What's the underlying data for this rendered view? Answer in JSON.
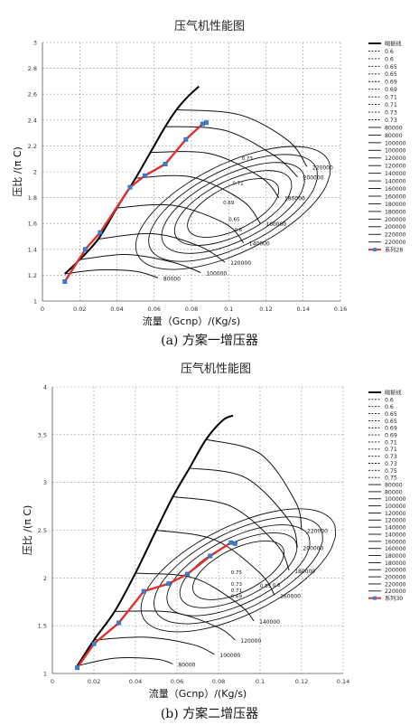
{
  "chart_data": [
    {
      "type": "line",
      "title": "压气机性能图",
      "xlabel": "流量（Gcnp）/(Kg/s)",
      "ylabel": "压比 /(π C)",
      "caption": "(a) 方案一增压器",
      "xlim": [
        0,
        0.16
      ],
      "ylim": [
        1,
        3
      ],
      "x_ticks": [
        "0",
        "0.02",
        "0.04",
        "0.06",
        "0.08",
        "0.1",
        "0.12",
        "0.14",
        "0.16"
      ],
      "y_ticks": [
        "1",
        "1.2",
        "1.4",
        "1.6",
        "1.8",
        "2",
        "2.2",
        "2.4",
        "2.6",
        "2.8",
        "3"
      ],
      "grid": true,
      "legend_position": "right",
      "legend": [
        "喘振线",
        "0.6",
        "0.6",
        "0.65",
        "0.65",
        "0.69",
        "0.69",
        "0.71",
        "0.71",
        "0.73",
        "0.73",
        "80000",
        "80000",
        "100000",
        "100000",
        "120000",
        "120000",
        "140000",
        "140000",
        "160000",
        "160000",
        "180000",
        "180000",
        "200000",
        "200000",
        "220000",
        "220000",
        "系列28"
      ],
      "surge_line": [
        [
          0.012,
          1.21
        ],
        [
          0.02,
          1.32
        ],
        [
          0.03,
          1.48
        ],
        [
          0.04,
          1.72
        ],
        [
          0.05,
          1.95
        ],
        [
          0.058,
          2.15
        ],
        [
          0.066,
          2.35
        ],
        [
          0.072,
          2.48
        ],
        [
          0.078,
          2.58
        ],
        [
          0.084,
          2.66
        ]
      ],
      "speed_lines": [
        {
          "label": "80000",
          "points": [
            [
              0.012,
              1.21
            ],
            [
              0.03,
              1.24
            ],
            [
              0.05,
              1.23
            ],
            [
              0.062,
              1.18
            ]
          ]
        },
        {
          "label": "100000",
          "points": [
            [
              0.02,
              1.32
            ],
            [
              0.045,
              1.36
            ],
            [
              0.07,
              1.3
            ],
            [
              0.085,
              1.22
            ]
          ]
        },
        {
          "label": "120000",
          "points": [
            [
              0.03,
              1.48
            ],
            [
              0.06,
              1.52
            ],
            [
              0.085,
              1.42
            ],
            [
              0.098,
              1.3
            ]
          ]
        },
        {
          "label": "140000",
          "points": [
            [
              0.04,
              1.72
            ],
            [
              0.07,
              1.74
            ],
            [
              0.098,
              1.6
            ],
            [
              0.108,
              1.45
            ]
          ]
        },
        {
          "label": "160000",
          "points": [
            [
              0.05,
              1.95
            ],
            [
              0.08,
              1.96
            ],
            [
              0.107,
              1.78
            ],
            [
              0.117,
              1.6
            ]
          ]
        },
        {
          "label": "180000",
          "points": [
            [
              0.058,
              2.15
            ],
            [
              0.09,
              2.14
            ],
            [
              0.117,
              1.96
            ],
            [
              0.127,
              1.8
            ]
          ]
        },
        {
          "label": "200000",
          "points": [
            [
              0.066,
              2.35
            ],
            [
              0.098,
              2.32
            ],
            [
              0.125,
              2.12
            ],
            [
              0.137,
              1.96
            ]
          ]
        },
        {
          "label": "220000",
          "points": [
            [
              0.072,
              2.48
            ],
            [
              0.106,
              2.44
            ],
            [
              0.132,
              2.24
            ],
            [
              0.142,
              2.04
            ]
          ]
        }
      ],
      "efficiency_labels": [
        {
          "label": "0.73",
          "x": 0.107,
          "y": 2.09
        },
        {
          "label": "0.71",
          "x": 0.102,
          "y": 1.9
        },
        {
          "label": "0.69",
          "x": 0.097,
          "y": 1.75
        },
        {
          "label": "0.65",
          "x": 0.1,
          "y": 1.62
        },
        {
          "label": "0.6",
          "x": 0.103,
          "y": 1.54
        }
      ],
      "series": [
        {
          "name": "系列28",
          "x": [
            0.012,
            0.023,
            0.031,
            0.047,
            0.055,
            0.066,
            0.077,
            0.086,
            0.088
          ],
          "y": [
            1.15,
            1.4,
            1.53,
            1.88,
            1.97,
            2.06,
            2.25,
            2.37,
            2.38
          ]
        }
      ]
    },
    {
      "type": "line",
      "title": "压气机性能图",
      "xlabel": "流量（Gcnp）/(Kg/s)",
      "ylabel": "压比 /(π C)",
      "caption": "(b) 方案二增压器",
      "xlim": [
        0,
        0.14
      ],
      "ylim": [
        1,
        4
      ],
      "x_ticks": [
        "0",
        "0.02",
        "0.04",
        "0.06",
        "0.08",
        "0.1",
        "0.12",
        "0.14"
      ],
      "y_ticks": [
        "1",
        "1.5",
        "2",
        "2.5",
        "3",
        "3.5",
        "4"
      ],
      "grid": true,
      "legend_position": "right",
      "legend": [
        "喘振线",
        "0.6",
        "0.6",
        "0.65",
        "0.65",
        "0.69",
        "0.69",
        "0.71",
        "0.71",
        "0.73",
        "0.73",
        "0.75",
        "0.75",
        "80000",
        "80000",
        "100000",
        "100000",
        "120000",
        "120000",
        "140000",
        "140000",
        "160000",
        "160000",
        "180000",
        "180000",
        "200000",
        "200000",
        "220000",
        "220000",
        "系列30"
      ],
      "surge_line": [
        [
          0.012,
          1.08
        ],
        [
          0.02,
          1.35
        ],
        [
          0.03,
          1.65
        ],
        [
          0.04,
          2.05
        ],
        [
          0.05,
          2.5
        ],
        [
          0.058,
          2.85
        ],
        [
          0.066,
          3.15
        ],
        [
          0.074,
          3.45
        ],
        [
          0.082,
          3.65
        ],
        [
          0.087,
          3.7
        ]
      ],
      "speed_lines": [
        {
          "label": "80000",
          "points": [
            [
              0.012,
              1.08
            ],
            [
              0.03,
              1.16
            ],
            [
              0.05,
              1.15
            ],
            [
              0.058,
              1.1
            ]
          ]
        },
        {
          "label": "100000",
          "points": [
            [
              0.02,
              1.35
            ],
            [
              0.045,
              1.38
            ],
            [
              0.068,
              1.3
            ],
            [
              0.078,
              1.2
            ]
          ]
        },
        {
          "label": "120000",
          "points": [
            [
              0.03,
              1.65
            ],
            [
              0.058,
              1.64
            ],
            [
              0.08,
              1.48
            ],
            [
              0.088,
              1.35
            ]
          ]
        },
        {
          "label": "140000",
          "points": [
            [
              0.04,
              2.05
            ],
            [
              0.068,
              2.0
            ],
            [
              0.09,
              1.72
            ],
            [
              0.097,
              1.55
            ]
          ]
        },
        {
          "label": "160000",
          "points": [
            [
              0.05,
              2.5
            ],
            [
              0.078,
              2.4
            ],
            [
              0.1,
              2.05
            ],
            [
              0.107,
              1.82
            ]
          ]
        },
        {
          "label": "180000",
          "points": [
            [
              0.058,
              2.85
            ],
            [
              0.086,
              2.75
            ],
            [
              0.108,
              2.35
            ],
            [
              0.114,
              2.08
            ]
          ]
        },
        {
          "label": "200000",
          "points": [
            [
              0.066,
              3.15
            ],
            [
              0.093,
              3.05
            ],
            [
              0.114,
              2.6
            ],
            [
              0.118,
              2.32
            ]
          ]
        },
        {
          "label": "220000",
          "points": [
            [
              0.074,
              3.45
            ],
            [
              0.1,
              3.3
            ],
            [
              0.117,
              2.8
            ],
            [
              0.12,
              2.5
            ]
          ]
        }
      ],
      "efficiency_labels": [
        {
          "label": "0.75",
          "x": 0.086,
          "y": 2.04
        },
        {
          "label": "0.73",
          "x": 0.086,
          "y": 1.92
        },
        {
          "label": "0.71",
          "x": 0.086,
          "y": 1.85
        },
        {
          "label": "0.69",
          "x": 0.086,
          "y": 1.79
        },
        {
          "label": "0.65",
          "x": 0.1,
          "y": 1.9
        },
        {
          "label": "0.6",
          "x": 0.106,
          "y": 1.91
        }
      ],
      "series": [
        {
          "name": "系列30",
          "x": [
            0.012,
            0.02,
            0.032,
            0.044,
            0.056,
            0.065,
            0.076,
            0.086,
            0.088
          ],
          "y": [
            1.06,
            1.31,
            1.53,
            1.86,
            1.94,
            2.04,
            2.23,
            2.37,
            2.36
          ]
        }
      ]
    }
  ]
}
